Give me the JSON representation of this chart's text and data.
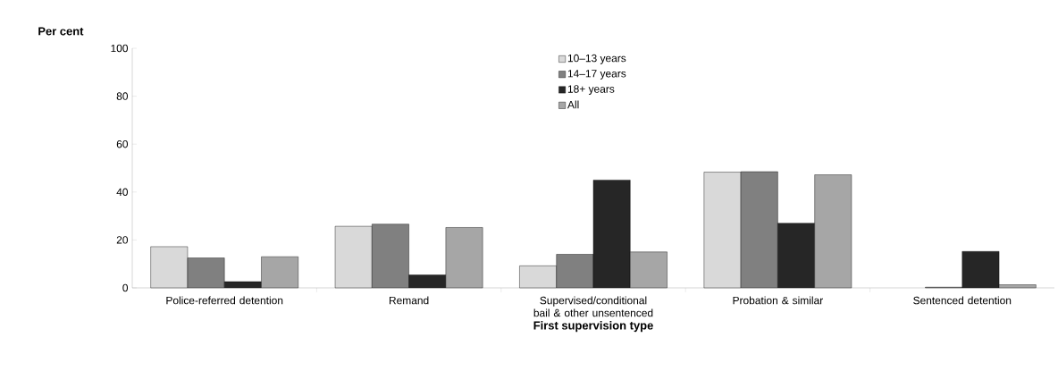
{
  "chart_data": {
    "type": "bar",
    "ylabel": "Per cent",
    "xlabel": "First supervision type",
    "categories": [
      "Police-referred detention",
      "Remand",
      "Supervised/conditional bail & other unsentenced",
      "Probation & similar",
      "Sentenced detention"
    ],
    "series": [
      {
        "name": "10–13 years",
        "color": "#d9d9d9",
        "values": [
          17.2,
          25.7,
          9.2,
          48.3,
          null
        ]
      },
      {
        "name": "14–17 years",
        "color": "#808080",
        "values": [
          12.5,
          26.6,
          14.0,
          48.5,
          0.3
        ]
      },
      {
        "name": "18+ years",
        "color": "#262626",
        "values": [
          2.6,
          5.4,
          45.0,
          27.0,
          15.2
        ]
      },
      {
        "name": "All",
        "color": "#a6a6a6",
        "values": [
          13.0,
          25.2,
          15.0,
          47.2,
          1.3
        ]
      }
    ],
    "ylim": [
      0,
      100
    ],
    "yticks": [
      0,
      20,
      40,
      60,
      80,
      100
    ],
    "grid": false,
    "legend": "top"
  }
}
